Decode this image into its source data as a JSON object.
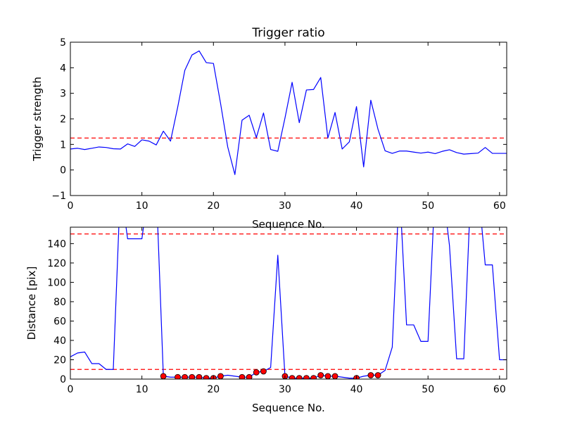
{
  "chart_data": [
    {
      "type": "line",
      "title": "Trigger ratio",
      "xlabel": "Sequence No.",
      "ylabel": "Trigger strength",
      "xlim": [
        0,
        61
      ],
      "ylim": [
        -1,
        5
      ],
      "xticks": [
        0,
        10,
        20,
        30,
        40,
        50,
        60
      ],
      "yticks": [
        -1,
        0,
        1,
        2,
        3,
        4,
        5
      ],
      "threshold": 1.25,
      "line_color": "#0000ff",
      "threshold_color": "#ff0000",
      "series": [
        {
          "x": [
            0,
            1,
            2,
            3,
            4,
            5,
            6,
            7,
            8,
            9,
            10,
            11,
            12,
            13,
            14,
            15,
            16,
            17,
            18,
            19,
            20,
            21,
            22,
            23,
            24,
            25,
            26,
            27,
            28,
            29,
            30,
            31,
            32,
            33,
            34,
            35,
            36,
            37,
            38,
            39,
            40,
            41,
            42,
            43,
            44,
            45,
            46,
            47,
            48,
            49,
            50,
            51,
            52,
            53,
            54,
            55,
            56,
            57,
            58,
            59,
            60,
            61
          ],
          "values": [
            0.82,
            0.85,
            0.8,
            0.85,
            0.9,
            0.88,
            0.83,
            0.82,
            1.02,
            0.92,
            1.18,
            1.13,
            0.98,
            1.52,
            1.13,
            2.45,
            3.9,
            4.5,
            4.66,
            4.2,
            4.17,
            2.6,
            0.9,
            -0.18,
            1.95,
            2.14,
            1.27,
            2.23,
            0.8,
            0.73,
            2.03,
            3.43,
            1.85,
            3.13,
            3.15,
            3.62,
            1.25,
            2.25,
            0.82,
            1.1,
            2.48,
            0.12,
            2.73,
            1.6,
            0.75,
            0.65,
            0.74,
            0.74,
            0.7,
            0.66,
            0.7,
            0.64,
            0.73,
            0.79,
            0.68,
            0.62,
            0.64,
            0.66,
            0.88,
            0.65,
            0.65,
            0.65
          ]
        }
      ]
    },
    {
      "type": "line",
      "title": "",
      "xlabel": "Sequence No.",
      "ylabel": "Distance [pix]",
      "xlim": [
        0,
        61
      ],
      "ylim": [
        0,
        157
      ],
      "xticks": [
        0,
        10,
        20,
        30,
        40,
        50,
        60
      ],
      "yticks": [
        0,
        20,
        40,
        60,
        80,
        100,
        120,
        140
      ],
      "thresholds": [
        150,
        10
      ],
      "line_color": "#0000ff",
      "threshold_color": "#ff0000",
      "marker_color": "#ff0000",
      "series": [
        {
          "x": [
            0,
            1,
            2,
            3,
            4,
            5,
            6,
            7,
            8,
            9,
            10,
            11,
            12,
            13,
            14,
            15,
            16,
            17,
            18,
            19,
            20,
            21,
            22,
            23,
            24,
            25,
            26,
            27,
            28,
            29,
            30,
            31,
            32,
            33,
            34,
            35,
            36,
            37,
            38,
            39,
            40,
            41,
            42,
            43,
            44,
            45,
            46,
            47,
            48,
            49,
            50,
            51,
            52,
            53,
            54,
            55,
            56,
            57,
            58,
            59,
            60,
            61
          ],
          "values": [
            23,
            27,
            28,
            16,
            16,
            10,
            10,
            200,
            145,
            145,
            145,
            200,
            200,
            3,
            2,
            2,
            2,
            2,
            2,
            1,
            1,
            3,
            4,
            3,
            2,
            2,
            7,
            8,
            12,
            128,
            3,
            1,
            1,
            1,
            1,
            4,
            3,
            3,
            2,
            1,
            1,
            3,
            4,
            4,
            9,
            33,
            200,
            56,
            56,
            39,
            39,
            200,
            200,
            138,
            21,
            21,
            200,
            200,
            118,
            118,
            20,
            20
          ]
        },
        {
          "name": "",
          "type": "markers",
          "x": [
            13,
            15,
            16,
            17,
            18,
            19,
            20,
            21,
            24,
            25,
            26,
            27,
            30,
            31,
            32,
            33,
            34,
            35,
            36,
            37,
            40,
            42,
            43
          ],
          "values": [
            3,
            2,
            2,
            2,
            2,
            1,
            1,
            3,
            2,
            2,
            7,
            8,
            3,
            1,
            1,
            1,
            1,
            4,
            3,
            3,
            1,
            4,
            4
          ]
        }
      ]
    }
  ]
}
